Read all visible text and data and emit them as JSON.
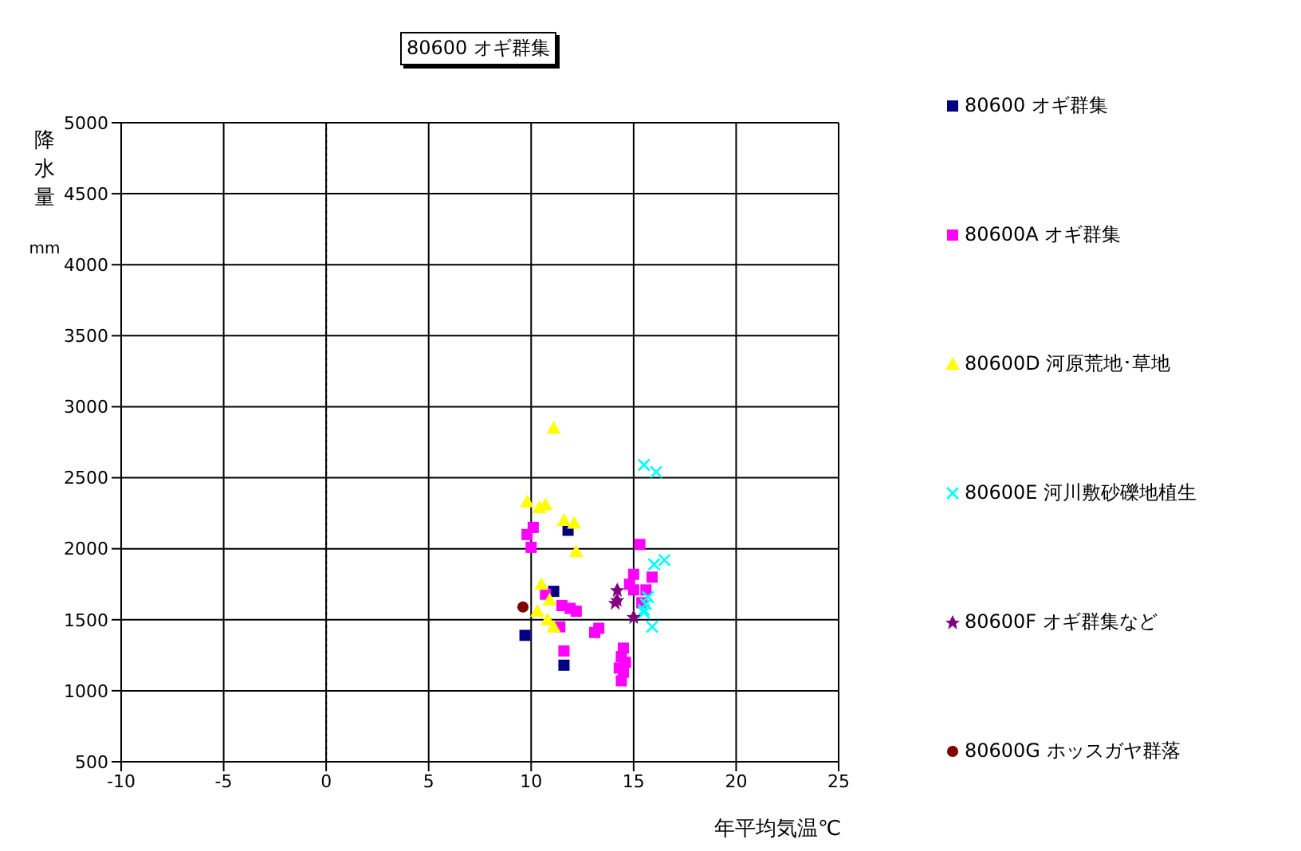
{
  "chart_data": {
    "type": "scatter",
    "title": "80600 オギ群集",
    "xlabel": "年平均気温℃",
    "ylabel": "降水量 mm",
    "xlim": [
      -10,
      25
    ],
    "xticks": [
      -10,
      -5,
      0,
      5,
      10,
      15,
      20,
      25
    ],
    "ylim": [
      500,
      5000
    ],
    "yticks": [
      500,
      1000,
      1500,
      2000,
      2500,
      3000,
      3500,
      4000,
      4500,
      5000
    ],
    "grid": true,
    "legend": "right",
    "ref_lines": [
      {
        "axis": "x",
        "value": 0,
        "line_style": "dotted",
        "color": "#000000"
      }
    ],
    "series": [
      {
        "name": "80600 オギ群集",
        "color": "#000080",
        "marker": "square",
        "x": [
          11.8,
          11.1,
          9.7,
          11.6
        ],
        "values": [
          2130,
          1700,
          1390,
          1180
        ]
      },
      {
        "name": "80600A オギ群集",
        "color": "#ff00ff",
        "marker": "square",
        "x": [
          10.1,
          9.8,
          10.0,
          15.3,
          10.7,
          11.5,
          11.9,
          12.2,
          11.4,
          13.1,
          13.3,
          11.6,
          15.0,
          15.9,
          14.8,
          15.0,
          15.6,
          15.4,
          14.5,
          14.4,
          14.6,
          14.3,
          14.5,
          14.4
        ],
        "values": [
          2150,
          2100,
          2010,
          2030,
          1680,
          1600,
          1580,
          1560,
          1450,
          1410,
          1440,
          1280,
          1820,
          1800,
          1750,
          1710,
          1710,
          1620,
          1300,
          1240,
          1200,
          1160,
          1130,
          1070
        ]
      },
      {
        "name": "80600D 河原荒地･草地",
        "color": "#ffff00",
        "marker": "triangle",
        "x": [
          11.1,
          9.8,
          10.4,
          10.7,
          11.6,
          12.1,
          12.2,
          10.5,
          10.9,
          10.3,
          10.8,
          11.1
        ],
        "values": [
          2850,
          2330,
          2290,
          2310,
          2200,
          2180,
          1980,
          1750,
          1640,
          1560,
          1500,
          1450
        ]
      },
      {
        "name": "80600E 河川敷砂礫地植生",
        "color": "#00ffff",
        "marker": "cross",
        "x": [
          15.5,
          16.1,
          16.5,
          16.0,
          15.7,
          15.6,
          15.5,
          15.9,
          15.5
        ],
        "values": [
          2590,
          2540,
          1920,
          1890,
          1660,
          1610,
          1550,
          1450,
          1570
        ]
      },
      {
        "name": "80600F オギ群集など",
        "color": "#800080",
        "marker": "star",
        "x": [
          14.2,
          14.2,
          14.1,
          15.0
        ],
        "values": [
          1710,
          1640,
          1620,
          1520
        ]
      },
      {
        "name": "80600G ホッスガヤ群落",
        "color": "#800000",
        "marker": "circle",
        "x": [
          9.6
        ],
        "values": [
          1590
        ]
      }
    ]
  }
}
